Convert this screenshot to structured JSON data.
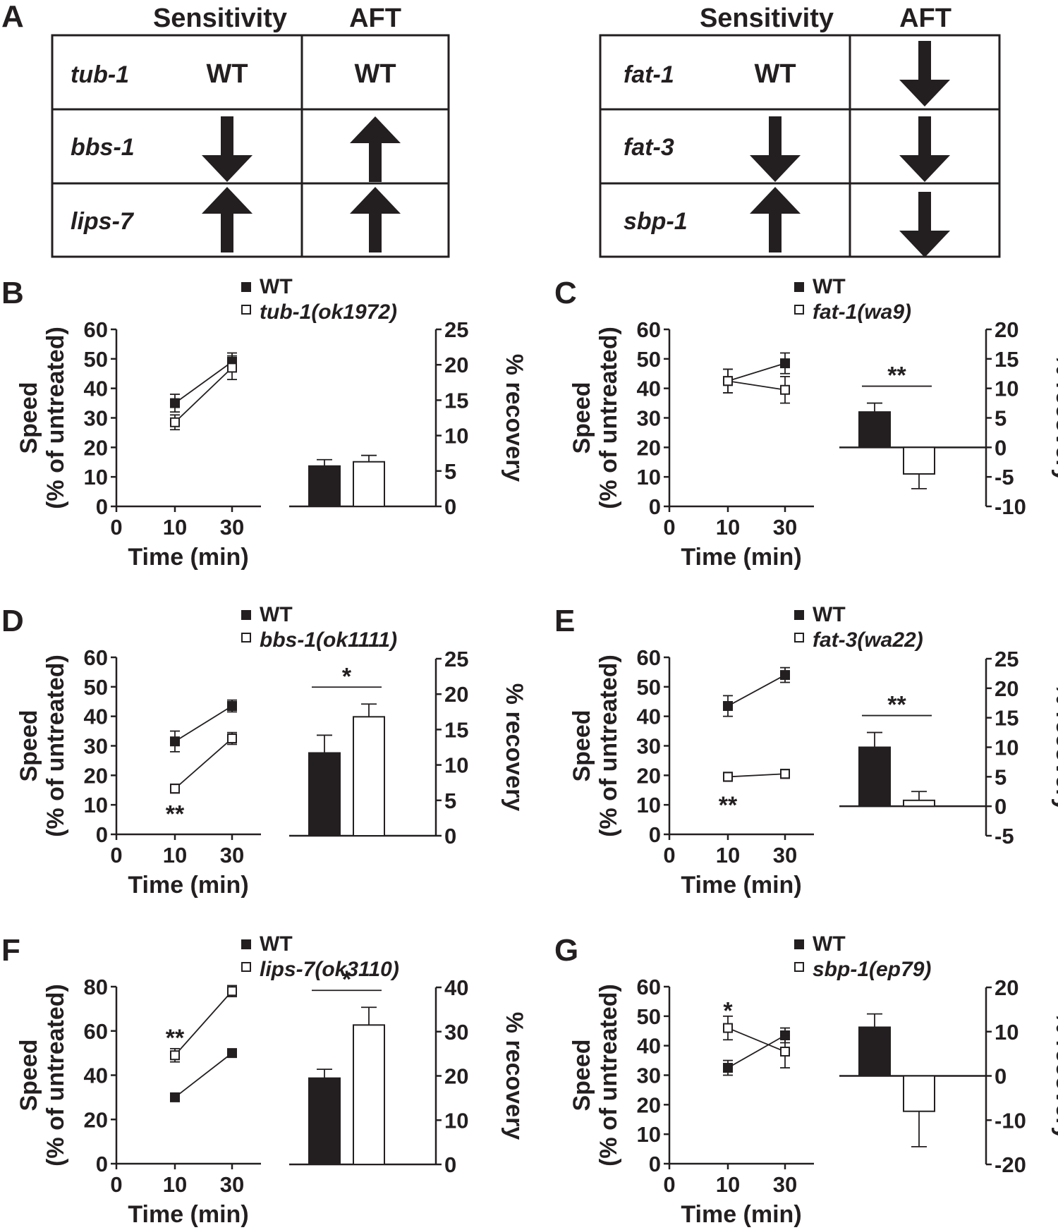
{
  "panel_a": {
    "letter": "A",
    "col_sensitivity": "Sensitivity",
    "col_aft": "AFT",
    "wt_label": "WT",
    "left_rows": [
      {
        "gene": "tub-1",
        "sensitivity": "WT",
        "aft": "WT"
      },
      {
        "gene": "bbs-1",
        "sensitivity": "down",
        "aft": "up"
      },
      {
        "gene": "lips-7",
        "sensitivity": "up",
        "aft": "up"
      }
    ],
    "right_rows": [
      {
        "gene": "fat-1",
        "sensitivity": "WT",
        "aft": "down"
      },
      {
        "gene": "fat-3",
        "sensitivity": "down",
        "aft": "down"
      },
      {
        "gene": "sbp-1",
        "sensitivity": "up",
        "aft": "down"
      }
    ]
  },
  "chart_data": [
    {
      "panel": "B",
      "type": "line+bar",
      "legend": [
        "WT",
        "tub-1(ok1972)"
      ],
      "line": {
        "x": [
          10,
          30
        ],
        "xticks": [
          "0",
          "10",
          "30"
        ],
        "xlabel": "Time (min)",
        "ylabel": [
          "Speed",
          "(% of untreated)"
        ],
        "ylim": [
          0,
          60
        ],
        "yticks": [
          0,
          10,
          20,
          30,
          40,
          50,
          60
        ],
        "series": [
          {
            "name": "WT",
            "values": [
              35,
              49
            ],
            "errors": [
              3,
              3
            ]
          },
          {
            "name": "tub-1(ok1972)",
            "values": [
              28.5,
              47
            ],
            "errors": [
              2.5,
              4
            ]
          }
        ],
        "annotations": []
      },
      "bar": {
        "ylabel": "% recovery",
        "ylim": [
          0,
          25
        ],
        "yticks": [
          0,
          5,
          10,
          15,
          20,
          25
        ],
        "values": [
          5.7,
          6.3
        ],
        "errors": [
          0.9,
          0.9
        ],
        "sig": ""
      }
    },
    {
      "panel": "C",
      "type": "line+bar",
      "legend": [
        "WT",
        "fat-1(wa9)"
      ],
      "line": {
        "x": [
          10,
          30
        ],
        "xticks": [
          "0",
          "10",
          "30"
        ],
        "xlabel": "Time (min)",
        "ylabel": [
          "Speed",
          "(% of untreated)"
        ],
        "ylim": [
          0,
          60
        ],
        "yticks": [
          0,
          10,
          20,
          30,
          40,
          50,
          60
        ],
        "series": [
          {
            "name": "WT",
            "values": [
              42.5,
              48.5
            ],
            "errors": [
              4,
              3.5
            ]
          },
          {
            "name": "fat-1(wa9)",
            "values": [
              42.5,
              39.5
            ],
            "errors": [
              4,
              4.5
            ]
          }
        ],
        "annotations": []
      },
      "bar": {
        "ylabel": "% recovery",
        "ylim": [
          -10,
          20
        ],
        "yticks": [
          -10,
          -5,
          0,
          5,
          10,
          15,
          20
        ],
        "values": [
          6,
          -4.5
        ],
        "errors": [
          1.5,
          2.5
        ],
        "sig": "**"
      }
    },
    {
      "panel": "D",
      "type": "line+bar",
      "legend": [
        "WT",
        "bbs-1(ok1111)"
      ],
      "line": {
        "x": [
          10,
          30
        ],
        "xticks": [
          "0",
          "10",
          "30"
        ],
        "xlabel": "Time (min)",
        "ylabel": [
          "Speed",
          "(% of untreated)"
        ],
        "ylim": [
          0,
          60
        ],
        "yticks": [
          0,
          10,
          20,
          30,
          40,
          50,
          60
        ],
        "series": [
          {
            "name": "WT",
            "values": [
              31.5,
              43.5
            ],
            "errors": [
              3.5,
              2
            ]
          },
          {
            "name": "bbs-1(ok1111)",
            "values": [
              15.5,
              32.5
            ],
            "errors": [
              1.5,
              2
            ]
          }
        ],
        "annotations": [
          {
            "text": "**",
            "x": 10,
            "y": 7
          }
        ]
      },
      "bar": {
        "ylabel": "% recovery",
        "ylim": [
          0,
          25
        ],
        "yticks": [
          0,
          5,
          10,
          15,
          20,
          25
        ],
        "values": [
          11.7,
          16.8
        ],
        "errors": [
          2.5,
          1.8
        ],
        "sig": "*"
      }
    },
    {
      "panel": "E",
      "type": "line+bar",
      "legend": [
        "WT",
        "fat-3(wa22)"
      ],
      "line": {
        "x": [
          10,
          30
        ],
        "xticks": [
          "0",
          "10",
          "30"
        ],
        "xlabel": "Time (min)",
        "ylabel": [
          "Speed",
          "(% of untreated)"
        ],
        "ylim": [
          0,
          60
        ],
        "yticks": [
          0,
          10,
          20,
          30,
          40,
          50,
          60
        ],
        "series": [
          {
            "name": "WT",
            "values": [
              43.5,
              54
            ],
            "errors": [
              3.5,
              2.5
            ]
          },
          {
            "name": "fat-3(wa22)",
            "values": [
              19.5,
              20.5
            ],
            "errors": [
              1.5,
              1.5
            ]
          }
        ],
        "annotations": [
          {
            "text": "**",
            "x": 10,
            "y": 10
          }
        ]
      },
      "bar": {
        "ylabel": "% recovery",
        "ylim": [
          -5,
          25
        ],
        "yticks": [
          -5,
          0,
          5,
          10,
          15,
          20,
          25
        ],
        "values": [
          10,
          1
        ],
        "errors": [
          2.5,
          1.5
        ],
        "sig": "**"
      }
    },
    {
      "panel": "F",
      "type": "line+bar",
      "legend": [
        "WT",
        "lips-7(ok3110)"
      ],
      "line": {
        "x": [
          10,
          30
        ],
        "xticks": [
          "0",
          "10",
          "30"
        ],
        "xlabel": "Time (min)",
        "ylabel": [
          "Speed",
          "(% of untreated)"
        ],
        "ylim": [
          0,
          80
        ],
        "yticks": [
          0,
          20,
          40,
          60,
          80
        ],
        "series": [
          {
            "name": "WT",
            "values": [
              30,
              50
            ],
            "errors": [
              1.5,
              1.5
            ]
          },
          {
            "name": "lips-7(ok3110)",
            "values": [
              49,
              78
            ],
            "errors": [
              3,
              2.5
            ]
          }
        ],
        "annotations": [
          {
            "text": "**",
            "x": 10,
            "y": 57
          }
        ]
      },
      "bar": {
        "ylabel": "% recovery",
        "ylim": [
          0,
          40
        ],
        "yticks": [
          0,
          10,
          20,
          30,
          40
        ],
        "values": [
          19.5,
          31.5
        ],
        "errors": [
          2,
          4
        ],
        "sig": "*"
      }
    },
    {
      "panel": "G",
      "type": "line+bar",
      "legend": [
        "WT",
        "sbp-1(ep79)"
      ],
      "line": {
        "x": [
          10,
          30
        ],
        "xticks": [
          "0",
          "10",
          "30"
        ],
        "xlabel": "Time (min)",
        "ylabel": [
          "Speed",
          "(% of untreated)"
        ],
        "ylim": [
          0,
          60
        ],
        "yticks": [
          0,
          10,
          20,
          30,
          40,
          50,
          60
        ],
        "series": [
          {
            "name": "WT",
            "values": [
              32.5,
              43.5
            ],
            "errors": [
              2.5,
              2.5
            ]
          },
          {
            "name": "sbp-1(ep79)",
            "values": [
              46,
              38
            ],
            "errors": [
              4,
              5.5
            ]
          }
        ],
        "annotations": [
          {
            "text": "*",
            "x": 10,
            "y": 52
          }
        ]
      },
      "bar": {
        "ylabel": "% recovery",
        "ylim": [
          -20,
          20
        ],
        "yticks": [
          -20,
          -10,
          0,
          10,
          20
        ],
        "values": [
          11,
          -8
        ],
        "errors": [
          3,
          8
        ],
        "sig": ""
      }
    }
  ]
}
